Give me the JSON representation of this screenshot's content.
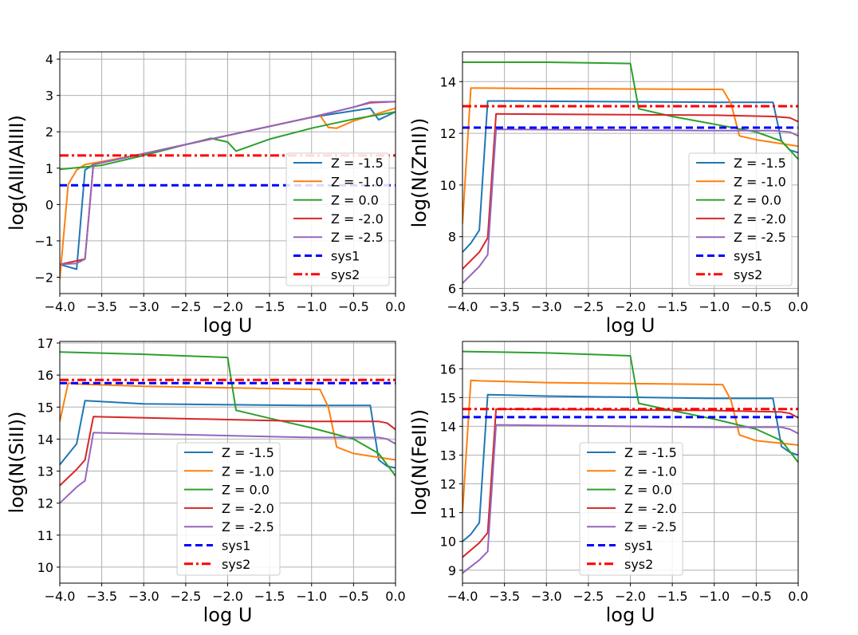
{
  "colors": {
    "Z = -1.5": "#1f77b4",
    "Z = -1.0": "#ff7f0e",
    "Z = 0.0": "#2ca02c",
    "Z = -2.0": "#d62728",
    "Z = -2.5": "#9467bd",
    "sys1": "#0000ff",
    "sys2": "#ff0000",
    "grid": "#b0b0b0"
  },
  "chart_data": [
    {
      "type": "line",
      "xlabel": "log U",
      "ylabel": "log(AlII/AlIII)",
      "xlim": [
        -4.0,
        0.0
      ],
      "ylim": [
        -2.45,
        4.2
      ],
      "xticks": [
        "−4.0",
        "−3.5",
        "−3.0",
        "−2.5",
        "−2.0",
        "−1.5",
        "−1.0",
        "−0.5",
        "0.0"
      ],
      "yticks": [
        "−2",
        "−1",
        "0",
        "1",
        "2",
        "3",
        "4"
      ],
      "ytick_values": [
        -2,
        -1,
        0,
        1,
        2,
        3,
        4
      ],
      "legend": "lower-right",
      "grid": true,
      "series": [
        {
          "name": "Z = -1.5",
          "x": [
            -4.0,
            -3.8,
            -3.7,
            -3.6,
            -3.0,
            -2.0,
            -1.0,
            -0.3,
            -0.2,
            0.0
          ],
          "y": [
            -1.65,
            -1.78,
            0.95,
            1.1,
            1.4,
            1.9,
            2.4,
            2.65,
            2.33,
            2.55
          ]
        },
        {
          "name": "Z = -1.0",
          "x": [
            -4.0,
            -3.9,
            -3.8,
            -3.7,
            -3.5,
            -3.0,
            -2.0,
            -1.0,
            -0.9,
            -0.8,
            -0.7,
            -0.5,
            0.0
          ],
          "y": [
            -2.05,
            0.55,
            0.95,
            1.1,
            1.18,
            1.4,
            1.9,
            2.4,
            2.45,
            2.12,
            2.1,
            2.3,
            2.65
          ]
        },
        {
          "name": "Z = 0.0",
          "x": [
            -4.0,
            -3.5,
            -3.0,
            -2.5,
            -2.2,
            -2.0,
            -1.9,
            -1.5,
            -1.0,
            -0.5,
            0.0
          ],
          "y": [
            0.97,
            1.08,
            1.35,
            1.65,
            1.82,
            1.72,
            1.47,
            1.8,
            2.1,
            2.35,
            2.55
          ]
        },
        {
          "name": "Z = -2.0",
          "x": [
            -4.0,
            -3.8,
            -3.7,
            -3.6,
            -3.0,
            -2.0,
            -1.0,
            -0.5,
            -0.3,
            0.0
          ],
          "y": [
            -1.65,
            -1.55,
            -1.5,
            1.1,
            1.4,
            1.9,
            2.4,
            2.68,
            2.8,
            2.83
          ]
        },
        {
          "name": "Z = -2.5",
          "x": [
            -4.0,
            -3.8,
            -3.7,
            -3.6,
            -3.0,
            -2.0,
            -1.0,
            -0.5,
            -0.3,
            0.0
          ],
          "y": [
            -1.65,
            -1.62,
            -1.5,
            1.1,
            1.4,
            1.9,
            2.4,
            2.68,
            2.82,
            2.83
          ]
        },
        {
          "name": "sys1",
          "x": [
            -4.0,
            0.0
          ],
          "y": [
            0.53,
            0.53
          ]
        },
        {
          "name": "sys2",
          "x": [
            -4.0,
            0.0
          ],
          "y": [
            1.35,
            1.35
          ]
        }
      ]
    },
    {
      "type": "line",
      "xlabel": "log U",
      "ylabel": "log(N(ZnII))",
      "xlim": [
        -4.0,
        0.0
      ],
      "ylim": [
        5.8,
        15.15
      ],
      "xticks": [
        "−4.0",
        "−3.5",
        "−3.0",
        "−2.5",
        "−2.0",
        "−1.5",
        "−1.0",
        "−0.5",
        "0.0"
      ],
      "yticks": [
        "6",
        "8",
        "10",
        "12",
        "14"
      ],
      "ytick_values": [
        6,
        8,
        10,
        12,
        14
      ],
      "legend": "lower-right",
      "grid": true,
      "series": [
        {
          "name": "Z = -1.5",
          "x": [
            -4.0,
            -3.9,
            -3.8,
            -3.7,
            -3.6,
            -1.0,
            -0.3,
            -0.2,
            -0.1,
            0.0
          ],
          "y": [
            7.4,
            7.75,
            8.25,
            13.25,
            13.25,
            13.2,
            13.2,
            11.7,
            11.35,
            11.25
          ]
        },
        {
          "name": "Z = -1.0",
          "x": [
            -4.0,
            -3.9,
            -3.8,
            -3.0,
            -1.0,
            -0.9,
            -0.8,
            -0.7,
            -0.5,
            0.0
          ],
          "y": [
            8.5,
            13.75,
            13.75,
            13.73,
            13.7,
            13.7,
            13.15,
            11.9,
            11.75,
            11.5
          ]
        },
        {
          "name": "Z = 0.0",
          "x": [
            -4.0,
            -3.0,
            -2.0,
            -1.9,
            -1.5,
            -1.0,
            -0.5,
            -0.2,
            0.0
          ],
          "y": [
            14.75,
            14.75,
            14.7,
            12.95,
            12.65,
            12.35,
            12.05,
            11.7,
            11.0
          ]
        },
        {
          "name": "Z = -2.0",
          "x": [
            -4.0,
            -3.8,
            -3.7,
            -3.6,
            -1.0,
            -0.3,
            -0.1,
            0.0
          ],
          "y": [
            6.75,
            7.4,
            7.95,
            12.75,
            12.7,
            12.65,
            12.6,
            12.45
          ]
        },
        {
          "name": "Z = -2.5",
          "x": [
            -4.0,
            -3.8,
            -3.7,
            -3.6,
            -1.0,
            -0.3,
            -0.1,
            0.0
          ],
          "y": [
            6.2,
            6.85,
            7.3,
            12.15,
            12.1,
            12.1,
            12.05,
            11.9
          ]
        },
        {
          "name": "sys1",
          "x": [
            -4.0,
            0.0
          ],
          "y": [
            12.22,
            12.22
          ]
        },
        {
          "name": "sys2",
          "x": [
            -4.0,
            0.0
          ],
          "y": [
            13.05,
            13.05
          ]
        }
      ]
    },
    {
      "type": "line",
      "xlabel": "log U",
      "ylabel": "log(N(SiII))",
      "xlim": [
        -4.0,
        0.0
      ],
      "ylim": [
        9.5,
        17.05
      ],
      "xticks": [
        "−4.0",
        "−3.5",
        "−3.0",
        "−2.5",
        "−2.0",
        "−1.5",
        "−1.0",
        "−0.5",
        "0.0"
      ],
      "yticks": [
        "10",
        "11",
        "12",
        "13",
        "14",
        "15",
        "16",
        "17"
      ],
      "ytick_values": [
        10,
        11,
        12,
        13,
        14,
        15,
        16,
        17
      ],
      "legend": "lower-center",
      "grid": true,
      "series": [
        {
          "name": "Z = -1.5",
          "x": [
            -4.0,
            -3.8,
            -3.7,
            -3.0,
            -1.0,
            -0.3,
            -0.2,
            -0.1,
            0.0
          ],
          "y": [
            13.2,
            13.85,
            15.2,
            15.1,
            15.05,
            15.05,
            13.35,
            13.15,
            13.1
          ]
        },
        {
          "name": "Z = -1.0",
          "x": [
            -4.0,
            -3.9,
            -3.8,
            -3.0,
            -0.9,
            -0.8,
            -0.7,
            -0.5,
            0.0
          ],
          "y": [
            14.55,
            15.75,
            15.72,
            15.65,
            15.55,
            15.0,
            13.75,
            13.55,
            13.35
          ]
        },
        {
          "name": "Z = 0.0",
          "x": [
            -4.0,
            -3.0,
            -2.0,
            -1.9,
            -1.5,
            -1.0,
            -0.5,
            -0.2,
            0.0
          ],
          "y": [
            16.72,
            16.65,
            16.55,
            14.9,
            14.65,
            14.35,
            14.0,
            13.55,
            12.85
          ]
        },
        {
          "name": "Z = -2.0",
          "x": [
            -4.0,
            -3.8,
            -3.7,
            -3.6,
            -1.0,
            -0.2,
            -0.1,
            0.0
          ],
          "y": [
            12.55,
            13.05,
            13.35,
            14.7,
            14.55,
            14.55,
            14.5,
            14.3
          ]
        },
        {
          "name": "Z = -2.5",
          "x": [
            -4.0,
            -3.8,
            -3.7,
            -3.6,
            -1.0,
            -0.2,
            -0.1,
            0.0
          ],
          "y": [
            12.0,
            12.5,
            12.7,
            14.2,
            14.05,
            14.05,
            14.0,
            13.85
          ]
        },
        {
          "name": "sys1",
          "x": [
            -4.0,
            0.0
          ],
          "y": [
            15.75,
            15.75
          ]
        },
        {
          "name": "sys2",
          "x": [
            -4.0,
            0.0
          ],
          "y": [
            15.85,
            15.85
          ]
        }
      ]
    },
    {
      "type": "line",
      "xlabel": "log U",
      "ylabel": "log(N(FeII))",
      "xlim": [
        -4.0,
        0.0
      ],
      "ylim": [
        8.55,
        16.95
      ],
      "xticks": [
        "−4.0",
        "−3.5",
        "−3.0",
        "−2.5",
        "−2.0",
        "−1.5",
        "−1.0",
        "−0.5",
        "0.0"
      ],
      "yticks": [
        "9",
        "10",
        "11",
        "12",
        "13",
        "14",
        "15",
        "16"
      ],
      "ytick_values": [
        9,
        10,
        11,
        12,
        13,
        14,
        15,
        16
      ],
      "legend": "lower-center",
      "grid": true,
      "series": [
        {
          "name": "Z = -1.5",
          "x": [
            -4.0,
            -3.9,
            -3.8,
            -3.7,
            -3.0,
            -1.0,
            -0.3,
            -0.2,
            -0.1,
            0.0
          ],
          "y": [
            10.0,
            10.25,
            10.65,
            15.1,
            15.05,
            14.97,
            14.97,
            13.3,
            13.1,
            13.0
          ]
        },
        {
          "name": "Z = -1.0",
          "x": [
            -4.0,
            -3.9,
            -3.8,
            -3.0,
            -0.9,
            -0.8,
            -0.7,
            -0.5,
            0.0
          ],
          "y": [
            11.0,
            15.6,
            15.58,
            15.52,
            15.45,
            14.9,
            13.7,
            13.5,
            13.35
          ]
        },
        {
          "name": "Z = 0.0",
          "x": [
            -4.0,
            -3.0,
            -2.0,
            -1.9,
            -1.5,
            -1.0,
            -0.5,
            -0.2,
            0.0
          ],
          "y": [
            16.6,
            16.55,
            16.45,
            14.8,
            14.55,
            14.25,
            13.9,
            13.5,
            12.75
          ]
        },
        {
          "name": "Z = -2.0",
          "x": [
            -4.0,
            -3.8,
            -3.7,
            -3.6,
            -1.0,
            -0.2,
            -0.1,
            0.0
          ],
          "y": [
            9.45,
            9.95,
            10.3,
            14.6,
            14.55,
            14.5,
            14.45,
            14.3
          ]
        },
        {
          "name": "Z = -2.5",
          "x": [
            -4.0,
            -3.8,
            -3.7,
            -3.6,
            -1.0,
            -0.2,
            -0.1,
            0.0
          ],
          "y": [
            8.9,
            9.35,
            9.65,
            14.05,
            13.97,
            13.97,
            13.9,
            13.75
          ]
        },
        {
          "name": "sys1",
          "x": [
            -4.0,
            0.0
          ],
          "y": [
            14.32,
            14.32
          ]
        },
        {
          "name": "sys2",
          "x": [
            -4.0,
            0.0
          ],
          "y": [
            14.6,
            14.6
          ]
        }
      ]
    }
  ]
}
